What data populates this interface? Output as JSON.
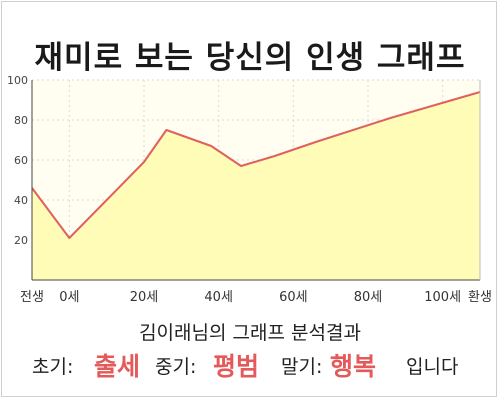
{
  "title": "재미로 보는 당신의 인생 그래프",
  "chart_data": {
    "type": "area",
    "title": "재미로 보는 당신의 인생 그래프",
    "xlabel": "",
    "ylabel": "",
    "x_ticks": [
      {
        "label": "전생",
        "x": -10
      },
      {
        "label": "0세",
        "x": 0
      },
      {
        "label": "20세",
        "x": 20
      },
      {
        "label": "40세",
        "x": 40
      },
      {
        "label": "60세",
        "x": 60
      },
      {
        "label": "80세",
        "x": 80
      },
      {
        "label": "100세",
        "x": 100
      },
      {
        "label": "환생",
        "x": 110
      }
    ],
    "y_ticks": [
      20,
      40,
      60,
      80,
      100
    ],
    "xlim": [
      -10,
      110
    ],
    "ylim": [
      0,
      100
    ],
    "series": [
      {
        "points": [
          [
            -10,
            46
          ],
          [
            0,
            21
          ],
          [
            20,
            59
          ],
          [
            26,
            75
          ],
          [
            38,
            67
          ],
          [
            46,
            57
          ],
          [
            55,
            62
          ],
          [
            66,
            69
          ],
          [
            86,
            81
          ],
          [
            110,
            94
          ]
        ]
      }
    ],
    "line_color": "#e06060",
    "fill_color": "#fffcb8",
    "plot_background": "#fffef0",
    "grid": true
  },
  "summary_text": "김이래님의 그래프 분석결과",
  "results": {
    "early_label": "초기:",
    "early_value": "출세",
    "mid_label": "중기:",
    "mid_value": "평범",
    "late_label": "말기:",
    "late_value": "행복",
    "ending": "입니다"
  }
}
